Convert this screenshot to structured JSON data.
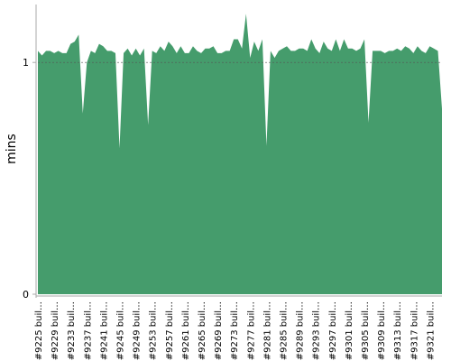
{
  "chart_data": {
    "type": "area",
    "y_label": "mins",
    "categories": [
      "#9225 buil…",
      null,
      null,
      null,
      "#9229 buil…",
      null,
      null,
      null,
      "#9233 buil…",
      null,
      null,
      null,
      "#9237 buil…",
      null,
      null,
      null,
      "#9241 buil…",
      null,
      null,
      null,
      "#9245 buil…",
      null,
      null,
      null,
      "#9249 buil…",
      null,
      null,
      null,
      "#9253 buil…",
      null,
      null,
      null,
      "#9257 buil…",
      null,
      null,
      null,
      "#9261 buil…",
      null,
      null,
      null,
      "#9265 buil…",
      null,
      null,
      null,
      "#9269 buil…",
      null,
      null,
      null,
      "#9273 buil…",
      null,
      null,
      null,
      "#9277 buil…",
      null,
      null,
      null,
      "#9281 buil…",
      null,
      null,
      null,
      "#9285 buil…",
      null,
      null,
      null,
      "#9289 buil…",
      null,
      null,
      null,
      "#9293 buil…",
      null,
      null,
      null,
      "#9297 buil…",
      null,
      null,
      null,
      "#9301 buil…",
      null,
      null,
      null,
      "#9305 buil…",
      null,
      null,
      null,
      "#9309 buil…",
      null,
      null,
      null,
      "#9313 buil…",
      null,
      null,
      null,
      "#9317 buil…",
      null,
      null,
      null,
      "#9321 buil…",
      null,
      null,
      null
    ],
    "values": [
      1.05,
      1.03,
      1.05,
      1.05,
      1.04,
      1.05,
      1.04,
      1.04,
      1.08,
      1.09,
      1.12,
      0.78,
      1.0,
      1.05,
      1.04,
      1.08,
      1.07,
      1.05,
      1.05,
      1.04,
      0.63,
      1.04,
      1.06,
      1.03,
      1.06,
      1.03,
      1.06,
      0.73,
      1.05,
      1.04,
      1.07,
      1.05,
      1.09,
      1.07,
      1.04,
      1.07,
      1.04,
      1.04,
      1.07,
      1.05,
      1.04,
      1.06,
      1.06,
      1.07,
      1.04,
      1.04,
      1.05,
      1.05,
      1.1,
      1.1,
      1.06,
      1.21,
      1.02,
      1.09,
      1.05,
      1.1,
      0.64,
      1.05,
      1.02,
      1.05,
      1.06,
      1.07,
      1.05,
      1.05,
      1.06,
      1.06,
      1.05,
      1.1,
      1.06,
      1.04,
      1.09,
      1.06,
      1.05,
      1.1,
      1.05,
      1.1,
      1.06,
      1.06,
      1.05,
      1.06,
      1.1,
      0.74,
      1.05,
      1.05,
      1.05,
      1.04,
      1.05,
      1.05,
      1.06,
      1.05,
      1.07,
      1.06,
      1.04,
      1.07,
      1.05,
      1.04,
      1.07,
      1.06,
      1.05,
      0.8
    ],
    "color": "#459c6c",
    "ylim": [
      0,
      1.25
    ],
    "yticks": [
      0,
      1
    ],
    "grid": true
  }
}
